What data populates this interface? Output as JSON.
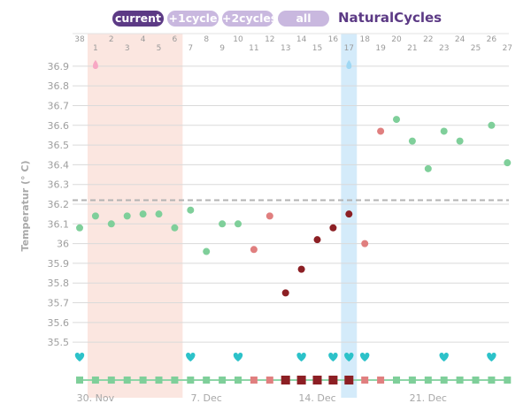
{
  "tabs": [
    {
      "label": "current",
      "active": true
    },
    {
      "label": "+1cycle",
      "active": false
    },
    {
      "label": "+2cycles",
      "active": false
    },
    {
      "label": "all",
      "active": false
    }
  ],
  "brand": "NaturalCycles",
  "colors": {
    "accent": "#5c3a85",
    "tab_inactive": "#c9b8df",
    "green": "#7fcf9a",
    "red_light": "#e07f7f",
    "red_dark": "#8c1f24",
    "period_band": "#fbe6e0",
    "ovulation_band": "#d4ebfa",
    "heart": "#2cc2c9",
    "coverline": "#b3b3b3",
    "grid": "#dadada"
  },
  "chart_data": {
    "type": "scatter",
    "ylabel": "Temperatur (° C)",
    "ylim": [
      35.42,
      36.98
    ],
    "yticks": [
      "36.9",
      "36.8",
      "36.7",
      "36.6",
      "36.5",
      "36.4",
      "36.3",
      "36.2",
      "36.1",
      "36",
      "35.9",
      "35.8",
      "35.7",
      "35.6",
      "35.5"
    ],
    "coverline": 36.22,
    "days_shown": 28,
    "cycle_day_labels": [
      38,
      1,
      2,
      3,
      4,
      5,
      6,
      7,
      8,
      9,
      10,
      11,
      12,
      13,
      14,
      15,
      16,
      17,
      18,
      19,
      20,
      21,
      22,
      23,
      24,
      25,
      26,
      27
    ],
    "date_labels": [
      {
        "day_index": 1,
        "text": "30. Nov"
      },
      {
        "day_index": 8,
        "text": "7. Dec"
      },
      {
        "day_index": 15,
        "text": "14. Dec"
      },
      {
        "day_index": 22,
        "text": "21. Dec"
      }
    ],
    "period_days": [
      1,
      6
    ],
    "ovulation_day": 17,
    "temperatures": [
      {
        "day_index": 0,
        "value": 36.08,
        "color": "green"
      },
      {
        "day_index": 1,
        "value": 36.14,
        "color": "green"
      },
      {
        "day_index": 2,
        "value": 36.1,
        "color": "green"
      },
      {
        "day_index": 3,
        "value": 36.14,
        "color": "green"
      },
      {
        "day_index": 4,
        "value": 36.15,
        "color": "green"
      },
      {
        "day_index": 5,
        "value": 36.15,
        "color": "green"
      },
      {
        "day_index": 6,
        "value": 36.08,
        "color": "green"
      },
      {
        "day_index": 7,
        "value": 36.17,
        "color": "green"
      },
      {
        "day_index": 8,
        "value": 35.96,
        "color": "green"
      },
      {
        "day_index": 9,
        "value": 36.1,
        "color": "green"
      },
      {
        "day_index": 10,
        "value": 36.1,
        "color": "green"
      },
      {
        "day_index": 11,
        "value": 35.97,
        "color": "red_light"
      },
      {
        "day_index": 12,
        "value": 36.14,
        "color": "red_light"
      },
      {
        "day_index": 13,
        "value": 35.75,
        "color": "red_dark"
      },
      {
        "day_index": 14,
        "value": 35.87,
        "color": "red_dark"
      },
      {
        "day_index": 15,
        "value": 36.02,
        "color": "red_dark"
      },
      {
        "day_index": 16,
        "value": 36.08,
        "color": "red_dark"
      },
      {
        "day_index": 17,
        "value": 36.15,
        "color": "red_dark"
      },
      {
        "day_index": 18,
        "value": 36.0,
        "color": "red_light"
      },
      {
        "day_index": 19,
        "value": 36.57,
        "color": "red_light"
      },
      {
        "day_index": 20,
        "value": 36.63,
        "color": "green"
      },
      {
        "day_index": 21,
        "value": 36.52,
        "color": "green"
      },
      {
        "day_index": 22,
        "value": 36.38,
        "color": "green"
      },
      {
        "day_index": 23,
        "value": 36.57,
        "color": "green"
      },
      {
        "day_index": 24,
        "value": 36.52,
        "color": "green"
      },
      {
        "day_index": 26,
        "value": 36.6,
        "color": "green"
      },
      {
        "day_index": 27,
        "value": 36.41,
        "color": "green"
      }
    ],
    "drop_markers": [
      {
        "day_index": 1,
        "color": "#f7a8c4"
      },
      {
        "day_index": 17,
        "color": "#9fd8f4"
      }
    ],
    "hearts": [
      0,
      7,
      10,
      14,
      16,
      17,
      18,
      23,
      26
    ],
    "day_status": [
      "green",
      "green",
      "green",
      "green",
      "green",
      "green",
      "green",
      "green",
      "green",
      "green",
      "green",
      "red_light",
      "red_light",
      "red_dark",
      "red_dark",
      "red_dark",
      "red_dark",
      "red_dark",
      "red_light",
      "red_light",
      "green",
      "green",
      "green",
      "green",
      "green",
      "green",
      "green",
      "green"
    ]
  }
}
